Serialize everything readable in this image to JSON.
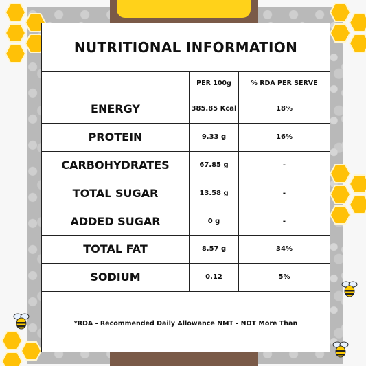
{
  "title": "NUTRITIONAL INFORMATION",
  "table": {
    "header": {
      "label": "",
      "per_100g": "PER 100g",
      "rda": "% RDA PER SERVE"
    },
    "rows": [
      {
        "label": "ENERGY",
        "per_100g": "385.85 Kcal",
        "rda": "18%"
      },
      {
        "label": "PROTEIN",
        "per_100g": "9.33 g",
        "rda": "16%"
      },
      {
        "label": "CARBOHYDRATES",
        "per_100g": "67.85 g",
        "rda": "-"
      },
      {
        "label": "TOTAL SUGAR",
        "per_100g": "13.58 g",
        "rda": "-"
      },
      {
        "label": "ADDED SUGAR",
        "per_100g": "0 g",
        "rda": "-"
      },
      {
        "label": "TOTAL FAT",
        "per_100g": "8.57 g",
        "rda": "34%"
      },
      {
        "label": "SODIUM",
        "per_100g": "0.12",
        "rda": "5%"
      }
    ]
  },
  "footnote": "*RDA - Recommended Daily Allowance NMT - NOT More Than",
  "colors": {
    "honey": "#ffd21a",
    "honeycomb": "#f7b500",
    "chocolate": "#7a5a48",
    "wall": "#b9b9b9",
    "card": "#ffffff",
    "border": "#222222"
  },
  "icons": [
    "honeycomb-decoration",
    "bee-icon"
  ]
}
